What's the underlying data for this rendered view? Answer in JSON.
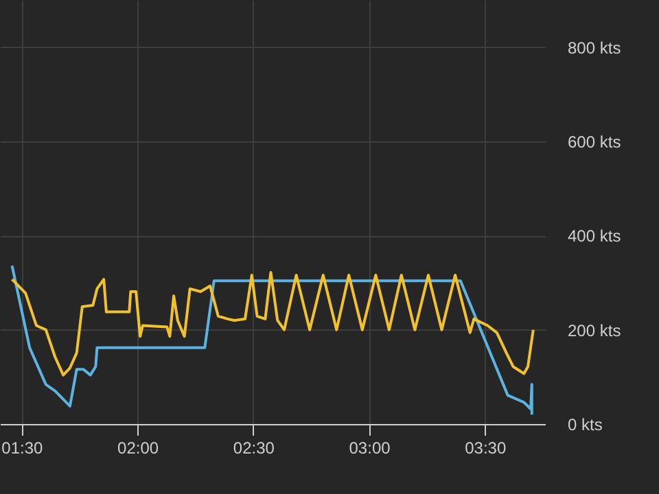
{
  "chart_data": {
    "type": "line",
    "xlim": [
      1.407,
      3.76
    ],
    "ylim": [
      0,
      900
    ],
    "xticks": [
      {
        "value": 1.5,
        "label": "01:30"
      },
      {
        "value": 2.0,
        "label": "02:00"
      },
      {
        "value": 2.5,
        "label": "02:30"
      },
      {
        "value": 3.0,
        "label": "03:00"
      },
      {
        "value": 3.5,
        "label": "03:30"
      }
    ],
    "yticks": [
      {
        "value": 0,
        "label": "0 kts"
      },
      {
        "value": 200,
        "label": "200 kts"
      },
      {
        "value": 400,
        "label": "400 kts"
      },
      {
        "value": 600,
        "label": "600 kts"
      },
      {
        "value": 800,
        "label": "800 kts"
      }
    ],
    "grid": true,
    "marker": "none",
    "line_style": "solid",
    "series": [
      {
        "color": "#5cb3e0",
        "x": [
          1.459,
          1.535,
          1.605,
          1.645,
          1.709,
          1.738,
          1.767,
          1.797,
          1.82,
          1.826,
          2.291,
          2.331,
          3.395,
          3.599,
          3.669,
          3.698,
          3.703,
          3.703
        ],
        "values": [
          336,
          162,
          84,
          70,
          38,
          116,
          116,
          104,
          122,
          162,
          162,
          304,
          304,
          61,
          46,
          32,
          84,
          20
        ]
      },
      {
        "color": "#f2c12e",
        "x": [
          1.459,
          1.517,
          1.564,
          1.605,
          1.645,
          1.68,
          1.709,
          1.738,
          1.762,
          1.808,
          1.826,
          1.855,
          1.866,
          1.965,
          1.971,
          1.994,
          2.012,
          2.023,
          2.128,
          2.14,
          2.157,
          2.174,
          2.203,
          2.227,
          2.273,
          2.314,
          2.349,
          2.39,
          2.419,
          2.465,
          2.494,
          2.517,
          2.552,
          2.576,
          2.605,
          2.634,
          2.686,
          2.744,
          2.802,
          2.86,
          2.913,
          2.971,
          3.029,
          3.087,
          3.14,
          3.198,
          3.256,
          3.314,
          3.372,
          3.436,
          3.453,
          3.512,
          3.552,
          3.593,
          3.622,
          3.669,
          3.686,
          3.709
        ],
        "values": [
          307,
          278,
          209,
          200,
          142,
          104,
          119,
          151,
          249,
          252,
          287,
          307,
          238,
          238,
          281,
          281,
          186,
          209,
          206,
          186,
          272,
          220,
          186,
          287,
          281,
          293,
          229,
          223,
          220,
          223,
          316,
          229,
          223,
          322,
          220,
          200,
          316,
          200,
          316,
          200,
          316,
          200,
          316,
          200,
          316,
          200,
          316,
          200,
          316,
          194,
          223,
          209,
          194,
          151,
          122,
          107,
          122,
          200
        ]
      }
    ]
  }
}
